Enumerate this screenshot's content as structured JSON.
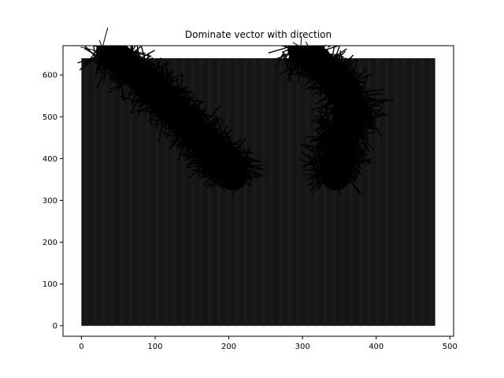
{
  "chart_data": {
    "type": "quiver",
    "title": "Dominate vector with direction",
    "xlabel": "",
    "ylabel": "",
    "xlim": [
      -25,
      505
    ],
    "ylim": [
      -25,
      670
    ],
    "x_ticks": [
      0,
      100,
      200,
      300,
      400,
      500
    ],
    "y_ticks": [
      0,
      100,
      200,
      300,
      400,
      500,
      600
    ],
    "image_extent": {
      "x": [
        0,
        480
      ],
      "y": [
        0,
        640
      ]
    },
    "grid": false,
    "legend": "none",
    "colors": {
      "background_image": "#151515",
      "stripe_light": "#1d1d1d",
      "vector": "#000000",
      "axes": "#000000"
    },
    "vector_clusters": [
      {
        "name": "",
        "path": [
          [
            40,
            655
          ],
          [
            90,
            580
          ],
          [
            140,
            490
          ],
          [
            185,
            410
          ],
          [
            205,
            360
          ]
        ],
        "spread": 26
      },
      {
        "name": "",
        "path": [
          [
            300,
            660
          ],
          [
            340,
            600
          ],
          [
            370,
            520
          ],
          [
            350,
            430
          ],
          [
            345,
            360
          ]
        ],
        "spread": 26
      }
    ]
  }
}
